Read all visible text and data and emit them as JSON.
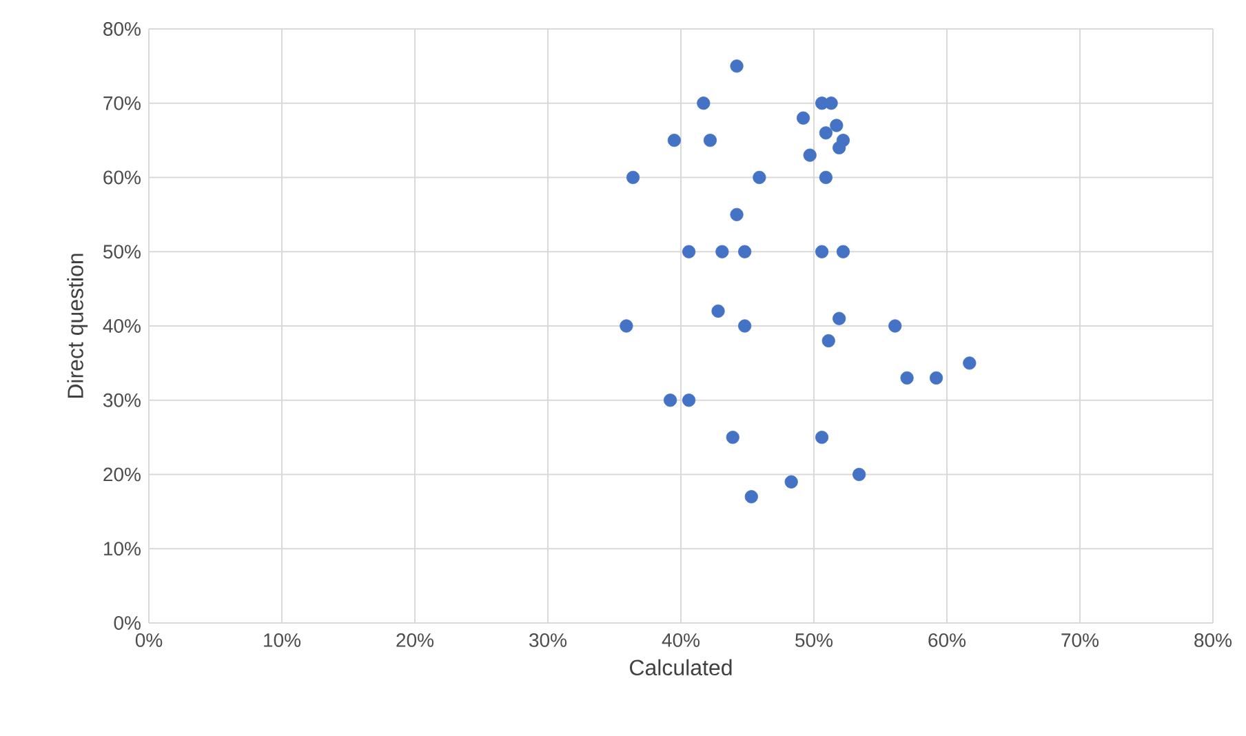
{
  "chart_data": {
    "type": "scatter",
    "xlabel": "Calculated",
    "ylabel": "Direct question",
    "x": [
      44.2,
      41.7,
      50.6,
      51.0,
      51.3,
      49.2,
      51.7,
      50.9,
      52.2,
      51.9,
      39.5,
      42.2,
      49.7,
      36.4,
      45.9,
      50.9,
      44.2,
      40.6,
      43.1,
      44.8,
      50.6,
      52.2,
      42.8,
      35.9,
      44.8,
      51.9,
      56.1,
      51.1,
      61.7,
      57.0,
      59.2,
      39.2,
      40.6,
      43.9,
      50.6,
      53.4,
      48.3,
      45.3
    ],
    "values": [
      75,
      70,
      70,
      null,
      70,
      68,
      67,
      66,
      65,
      64,
      65,
      65,
      63,
      60,
      60,
      60,
      55,
      50,
      50,
      50,
      50,
      50,
      42,
      40,
      40,
      41,
      40,
      38,
      35,
      33,
      33,
      30,
      30,
      25,
      25,
      20,
      19,
      17
    ],
    "color": "#4472c4",
    "marker": "circle",
    "grid": true,
    "xlim": [
      0,
      80
    ],
    "ylim": [
      0,
      80
    ],
    "xticks": [
      {
        "value": 0,
        "label": "0%"
      },
      {
        "value": 10,
        "label": "10%"
      },
      {
        "value": 20,
        "label": "20%"
      },
      {
        "value": 30,
        "label": "30%"
      },
      {
        "value": 40,
        "label": "40%"
      },
      {
        "value": 50,
        "label": "50%"
      },
      {
        "value": 60,
        "label": "60%"
      },
      {
        "value": 70,
        "label": "70%"
      },
      {
        "value": 80,
        "label": "80%"
      }
    ],
    "yticks": [
      {
        "value": 0,
        "label": "0%"
      },
      {
        "value": 10,
        "label": "10%"
      },
      {
        "value": 20,
        "label": "20%"
      },
      {
        "value": 30,
        "label": "30%"
      },
      {
        "value": 40,
        "label": "40%"
      },
      {
        "value": 50,
        "label": "50%"
      },
      {
        "value": 60,
        "label": "60%"
      },
      {
        "value": 70,
        "label": "70%"
      },
      {
        "value": 80,
        "label": "80%"
      }
    ]
  }
}
